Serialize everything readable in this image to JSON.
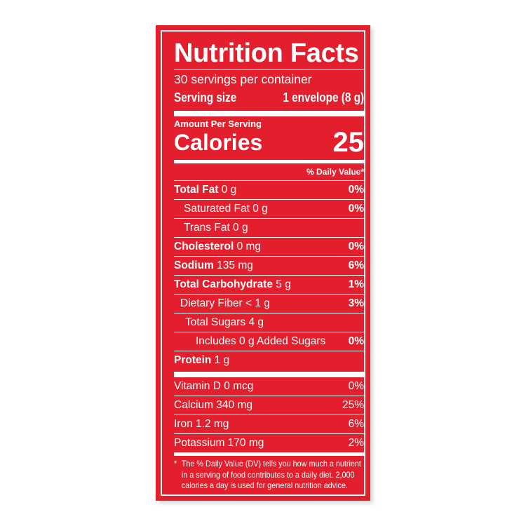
{
  "title": "Nutrition Facts",
  "servings": "30 servings per container",
  "serving_size_label": "Serving size",
  "serving_size_value": "1 envelope (8 g)",
  "amount_per_serving": "Amount Per Serving",
  "calories_label": "Calories",
  "calories_value": "25",
  "dv_header": "% Daily Value*",
  "nutrients": [
    {
      "name": "Total Fat",
      "amount": "0 g",
      "dv": "0%"
    },
    {
      "name": "Saturated Fat 0 g",
      "amount": "",
      "dv": "0%"
    },
    {
      "name": "Trans Fat 0 g",
      "amount": "",
      "dv": ""
    },
    {
      "name": "Cholesterol",
      "amount": "0 mg",
      "dv": "0%"
    },
    {
      "name": "Sodium",
      "amount": "135 mg",
      "dv": "6%"
    },
    {
      "name": "Total Carbohydrate",
      "amount": "5 g",
      "dv": "1%"
    },
    {
      "name": "Dietary Fiber < 1 g",
      "amount": "",
      "dv": "3%"
    },
    {
      "name": "Total Sugars 4 g",
      "amount": "",
      "dv": ""
    },
    {
      "name": "Includes 0 g Added Sugars",
      "amount": "",
      "dv": "0%"
    },
    {
      "name": "Protein",
      "amount": "1 g",
      "dv": ""
    }
  ],
  "vitamins": [
    {
      "name": "Vitamin D 0 mcg",
      "dv": "0%"
    },
    {
      "name": "Calcium 340 mg",
      "dv": "25%"
    },
    {
      "name": "Iron 1.2 mg",
      "dv": "6%"
    },
    {
      "name": "Potassium 170 mg",
      "dv": "2%"
    }
  ],
  "footnote_star": "*",
  "footnote": "The % Daily Value (DV) tells you how much a nutrient in a serving of food contributes to a daily diet. 2,000 calories a day is used for general nutrition advice.",
  "colors": {
    "label_red": "#e31e2d",
    "text": "#ffffff"
  }
}
